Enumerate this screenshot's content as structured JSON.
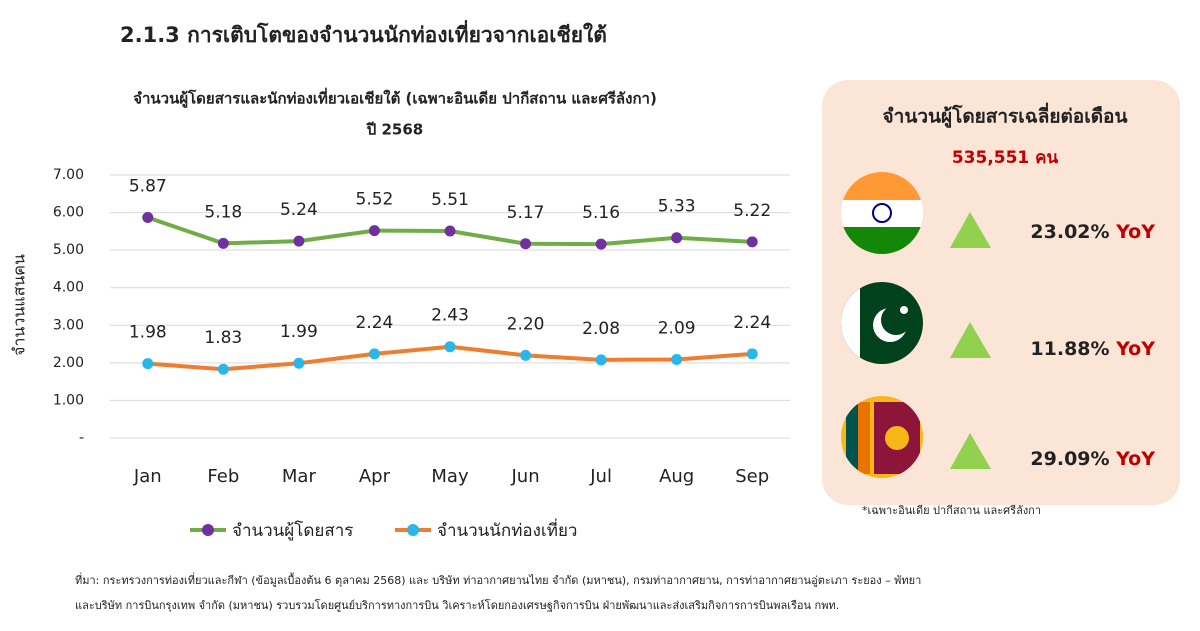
{
  "header": {
    "title": "2.1.3 การเติบโตของจำนวนนักท่องเที่ยวจากเอเชียใต้"
  },
  "chart_data": {
    "type": "line",
    "title": "จำนวนผู้โดยสารและนักท่องเที่ยวเอเชียใต้ (เฉพาะอินเดีย ปากีสถาน และศรีลังกา)",
    "subtitle": "ปี 2568",
    "y_label": "จำนวนแสนคน",
    "categories": [
      "Jan",
      "Feb",
      "Mar",
      "Apr",
      "May",
      "Jun",
      "Jul",
      "Aug",
      "Sep"
    ],
    "series": [
      {
        "name": "จำนวนผู้โดยสาร",
        "color": "#70ad47",
        "marker_color": "#7030a0",
        "values": [
          5.87,
          5.18,
          5.24,
          5.52,
          5.51,
          5.17,
          5.16,
          5.33,
          5.22
        ],
        "value_labels": [
          "5.87",
          "5.18",
          "5.24",
          "5.52",
          "5.51",
          "5.17",
          "5.16",
          "5.33",
          "5.22"
        ]
      },
      {
        "name": "จำนวนนักท่องเที่ยว",
        "color": "#ed7d31",
        "marker_color": "#29b6e8",
        "values": [
          1.98,
          1.83,
          1.99,
          2.24,
          2.43,
          2.2,
          2.08,
          2.09,
          2.24
        ],
        "value_labels": [
          "1.98",
          "1.83",
          "1.99",
          "2.24",
          "2.43",
          "2.20",
          "2.08",
          "2.09",
          "2.24"
        ]
      }
    ],
    "ylim": [
      0,
      7
    ],
    "yticks": [
      {
        "value": 0,
        "label": "-"
      },
      {
        "value": 1,
        "label": "1.00"
      },
      {
        "value": 2,
        "label": "2.00"
      },
      {
        "value": 3,
        "label": "3.00"
      },
      {
        "value": 4,
        "label": "4.00"
      },
      {
        "value": 5,
        "label": "5.00"
      },
      {
        "value": 6,
        "label": "6.00"
      },
      {
        "value": 7,
        "label": "7.00"
      }
    ],
    "grid": true
  },
  "panel": {
    "title": "จำนวนผู้โดยสารเฉลี่ยต่อเดือน",
    "total": "535,551 คน",
    "items": [
      {
        "change": "23.02%",
        "period": "YoY"
      },
      {
        "change": "11.88%",
        "period": "YoY"
      },
      {
        "change": "29.09%",
        "period": "YoY"
      }
    ],
    "note": "*เฉพาะอินเดีย ปากีสถาน และศรีลังกา"
  },
  "source": [
    "ที่มา: กระทรวงการท่องเที่ยวและกีฬา (ข้อมูลเบื้องต้น 6 ตุลาคม 2568) และ บริษัท ท่าอากาศยานไทย จำกัด (มหาชน), กรมท่าอากาศยาน, การท่าอากาศยานอู่ตะเภา ระยอง – พัทยา",
    "และบริษัท การบินกรุงเทพ จำกัด (มหาชน) รวบรวมโดยศูนย์บริการทางการบิน วิเคราะห์โดยกองเศรษฐกิจการบิน ฝ่ายพัฒนาและส่งเสริมกิจการการบินพลเรือน กพท."
  ]
}
